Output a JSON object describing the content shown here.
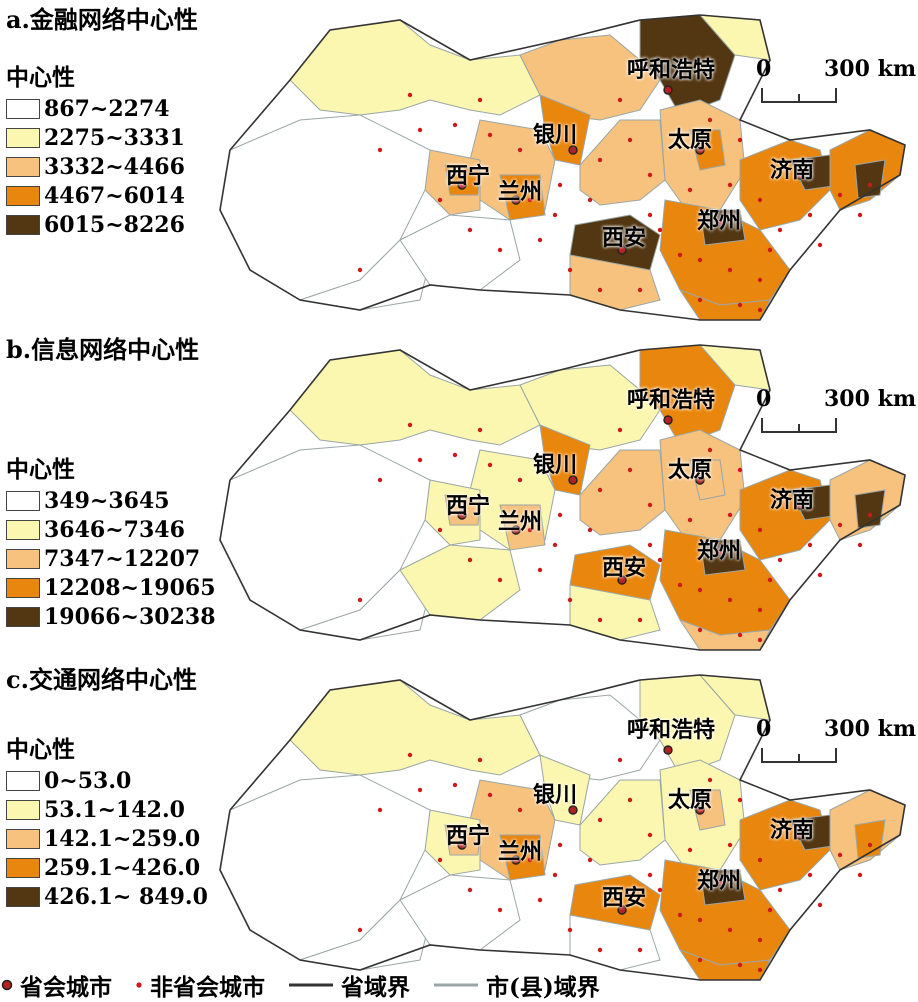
{
  "panels": [
    {
      "title": "a.金融网络中心性",
      "legend_title": "中心性",
      "classes": [
        {
          "label": "867~2274",
          "color": "#ffffff"
        },
        {
          "label": "2275~3331",
          "color": "#fbf7b0"
        },
        {
          "label": "3332~4466",
          "color": "#f6c27e"
        },
        {
          "label": "4467~6014",
          "color": "#e9860d"
        },
        {
          "label": "6015~8226",
          "color": "#533712"
        }
      ]
    },
    {
      "title": "b.信息网络中心性",
      "legend_title": "中心性",
      "classes": [
        {
          "label": "349~3645",
          "color": "#ffffff"
        },
        {
          "label": "3646~7346",
          "color": "#fbf7b0"
        },
        {
          "label": "7347~12207",
          "color": "#f6c27e"
        },
        {
          "label": "12208~19065",
          "color": "#e9860d"
        },
        {
          "label": "19066~30238",
          "color": "#533712"
        }
      ]
    },
    {
      "title": "c.交通网络中心性",
      "legend_title": "中心性",
      "classes": [
        {
          "label": "0~53.0",
          "color": "#ffffff"
        },
        {
          "label": "53.1~142.0",
          "color": "#fbf7b0"
        },
        {
          "label": "142.1~259.0",
          "color": "#f6c27e"
        },
        {
          "label": "259.1~426.0",
          "color": "#e9860d"
        },
        {
          "label": "426.1~ 849.0",
          "color": "#533712"
        }
      ]
    }
  ],
  "scale": {
    "zero": "0",
    "distance": "300 km"
  },
  "cities": {
    "huhehaote": "呼和浩特",
    "yinchuan": "银川",
    "taiyuan": "太原",
    "xining": "西宁",
    "lanzhou": "兰州",
    "jinan": "济南",
    "zhengzhou": "郑州",
    "xian": "西安"
  },
  "bottom_legend": {
    "capital": "省会城市",
    "non_capital": "非省会城市",
    "province_border": "省域界",
    "city_border": "市(县)域界"
  }
}
